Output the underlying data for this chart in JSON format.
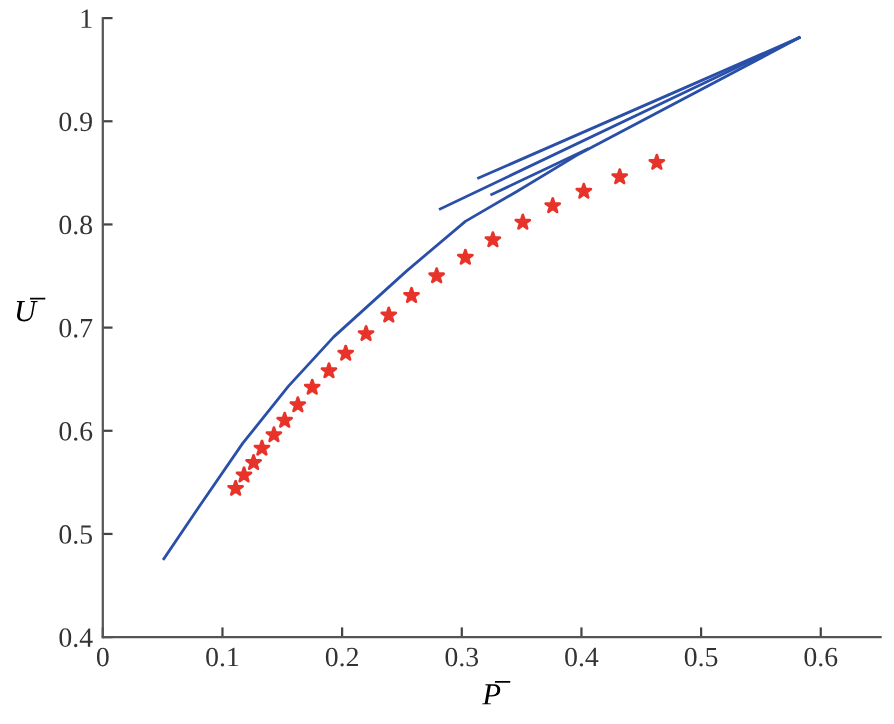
{
  "chart_data": {
    "type": "line",
    "xlabel": "P̅",
    "ylabel": "U̅",
    "xlim": [
      0,
      0.65
    ],
    "ylim": [
      0.4,
      1
    ],
    "xticks": [
      0,
      0.1,
      0.2,
      0.3,
      0.4,
      0.5,
      0.6
    ],
    "yticks": [
      0.4,
      0.5,
      0.6,
      0.7,
      0.8,
      0.9,
      1
    ],
    "grid": false,
    "legend": false,
    "series": [
      {
        "color": "#2a4fa8",
        "x": [
          0.051,
          0.079,
          0.117,
          0.155,
          0.193,
          0.254,
          0.303,
          0.346,
          0.396,
          0.582
        ],
        "values": [
          0.476,
          0.524,
          0.588,
          0.643,
          0.691,
          0.755,
          0.803,
          0.832,
          0.867,
          0.981
        ]
      },
      {
        "color": "#2a4fa8",
        "x": [
          0.282,
          0.582
        ],
        "values": [
          0.815,
          0.981
        ]
      },
      {
        "color": "#2a4fa8",
        "x": [
          0.314,
          0.582
        ],
        "values": [
          0.845,
          0.981
        ]
      },
      {
        "color": "#2a4fa8",
        "x": [
          0.325,
          0.405
        ],
        "values": [
          0.829,
          0.873
        ]
      },
      {
        "type": "scatter",
        "color": "#e8332a",
        "marker": "star",
        "x": [
          0.111,
          0.118,
          0.126,
          0.133,
          0.143,
          0.152,
          0.163,
          0.175,
          0.189,
          0.203,
          0.22,
          0.239,
          0.258,
          0.279,
          0.303,
          0.326,
          0.351,
          0.376,
          0.402,
          0.432,
          0.463
        ],
        "values": [
          0.544,
          0.557,
          0.569,
          0.583,
          0.596,
          0.61,
          0.625,
          0.642,
          0.658,
          0.675,
          0.694,
          0.712,
          0.731,
          0.75,
          0.768,
          0.785,
          0.802,
          0.818,
          0.832,
          0.846,
          0.86
        ]
      }
    ]
  }
}
